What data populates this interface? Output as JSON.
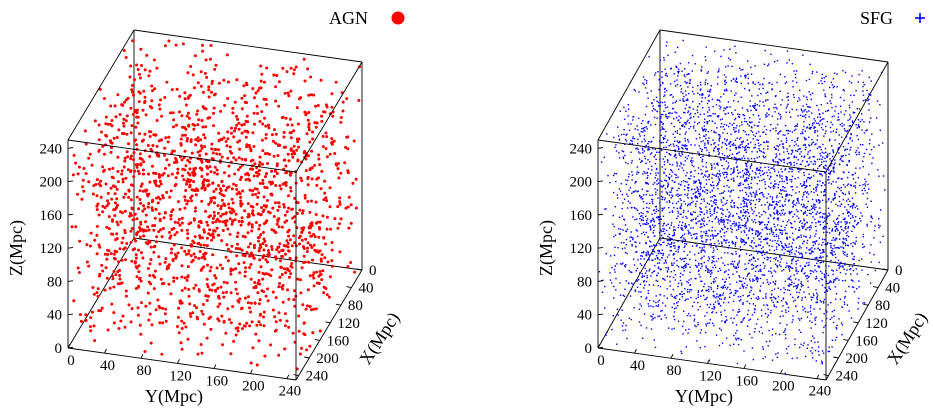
{
  "chart_data": [
    {
      "type": "scatter3d",
      "legend": {
        "label": "AGN",
        "marker": "filled-circle",
        "color": "#ff0000",
        "placement": "top-right"
      },
      "xlabel": "X(Mpc)",
      "ylabel": "Y(Mpc)",
      "zlabel": "Z(Mpc)",
      "xlim": [
        0,
        250
      ],
      "ylim": [
        0,
        250
      ],
      "zlim": [
        0,
        250
      ],
      "xticks": [
        "0",
        "40",
        "80",
        "120",
        "160",
        "200",
        "240"
      ],
      "yticks": [
        "0",
        "40",
        "80",
        "120",
        "160",
        "200",
        "240"
      ],
      "zticks": [
        "0",
        "40",
        "80",
        "120",
        "160",
        "200",
        "240"
      ],
      "points": {
        "count": 1800,
        "distribution": "uniform",
        "seed": 17
      }
    },
    {
      "type": "scatter3d",
      "legend": {
        "label": "SFG",
        "marker": "plus",
        "color": "#0000ff",
        "placement": "top-right"
      },
      "xlabel": "X(Mpc)",
      "ylabel": "Y(Mpc)",
      "zlabel": "Z(Mpc)",
      "xlim": [
        0,
        250
      ],
      "ylim": [
        0,
        250
      ],
      "zlim": [
        0,
        250
      ],
      "xticks": [
        "0",
        "40",
        "80",
        "120",
        "160",
        "200",
        "240"
      ],
      "yticks": [
        "0",
        "40",
        "80",
        "120",
        "160",
        "200",
        "240"
      ],
      "zticks": [
        "0",
        "40",
        "80",
        "120",
        "160",
        "200",
        "240"
      ],
      "points": {
        "count": 4500,
        "distribution": "uniform",
        "seed": 91
      }
    }
  ]
}
